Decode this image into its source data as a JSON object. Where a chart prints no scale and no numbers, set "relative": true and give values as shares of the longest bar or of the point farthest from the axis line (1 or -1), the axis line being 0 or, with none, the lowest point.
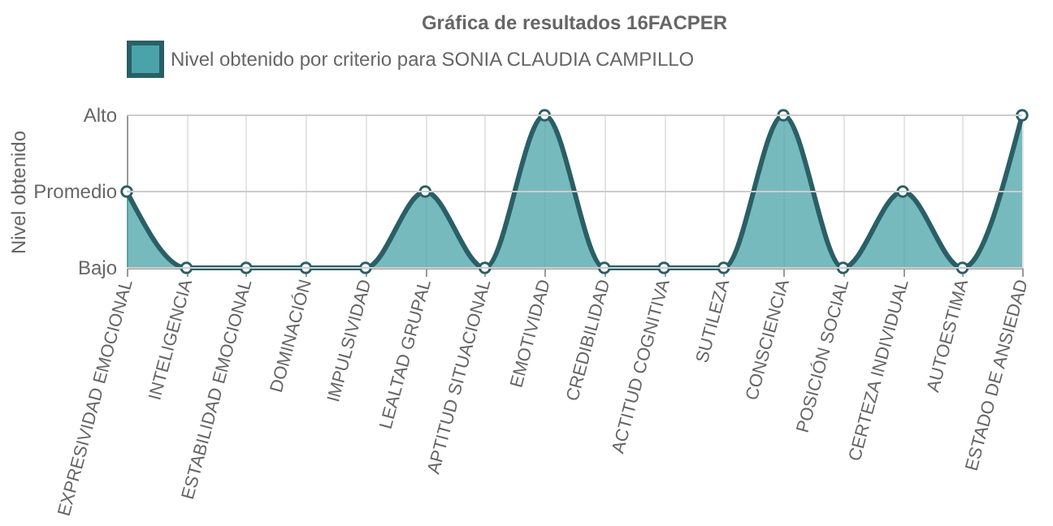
{
  "chart_data": {
    "type": "area",
    "title": "Gráfica de resultados 16FACPER",
    "ylabel": "Nivel obtenido",
    "categories": [
      "EXPRESIVIDAD EMOCIONAL",
      "INTELIGENCIA",
      "ESTABILIDAD EMOCIONAL",
      "DOMINACIÓN",
      "IMPULSIVIDAD",
      "LEALTAD GRUPAL",
      "APTITUD SITUACIONAL",
      "EMOTIVIDAD",
      "CREDIBILIDAD",
      "ACTITUD COGNITIVA",
      "SUTILEZA",
      "CONSCIENCIA",
      "POSICIÓN SOCIAL",
      "CERTEZA INDIVIDUAL",
      "AUTOESTIMA",
      "ESTADO DE ANSIEDAD"
    ],
    "series": [
      {
        "name": "Nivel obtenido por criterio para SONIA CLAUDIA CAMPILLO",
        "color": "#2a5f66",
        "values": [
          0.5,
          0,
          0,
          0,
          0,
          0.5,
          0,
          1,
          0,
          0,
          0,
          1,
          0,
          0.5,
          0,
          1
        ]
      }
    ],
    "relative": true,
    "ref_lines": [
      {
        "axis": "y",
        "value": 0,
        "label": "Bajo"
      },
      {
        "axis": "y",
        "value": 0.5,
        "label": "Promedio"
      },
      {
        "axis": "y",
        "value": 1,
        "label": "Alto"
      }
    ],
    "grid": "x",
    "legend": "top",
    "marker": "circle",
    "line_style": "solid"
  }
}
